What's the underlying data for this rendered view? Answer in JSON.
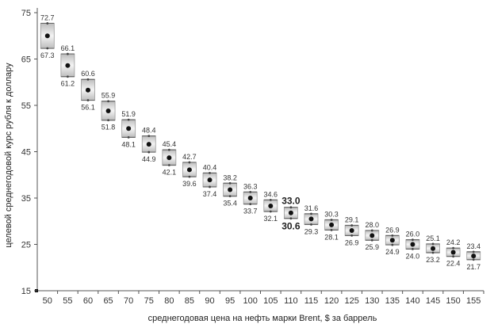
{
  "chart_data": {
    "type": "box",
    "xlabel": "среднегодовая цена на нефть марки Brent, $ за баррель",
    "ylabel": "целевой среднегодовой курс рубля к доллару",
    "ylim": [
      15,
      75
    ],
    "yticks": [
      15,
      25,
      35,
      45,
      55,
      65,
      75
    ],
    "categories": [
      "50",
      "55",
      "60",
      "65",
      "70",
      "75",
      "80",
      "85",
      "90",
      "95",
      "100",
      "105",
      "110",
      "115",
      "120",
      "125",
      "130",
      "135",
      "140",
      "145",
      "150",
      "155"
    ],
    "series": [
      {
        "high": [
          72.7,
          66.1,
          60.6,
          55.9,
          51.9,
          48.4,
          45.4,
          42.7,
          40.4,
          38.2,
          36.3,
          34.6,
          33.0,
          31.6,
          30.3,
          29.1,
          28.0,
          26.9,
          26.0,
          25.1,
          24.2,
          23.4
        ],
        "low": [
          67.3,
          61.2,
          56.1,
          51.8,
          48.1,
          44.9,
          42.1,
          39.6,
          37.4,
          35.4,
          33.7,
          32.1,
          30.6,
          29.3,
          28.1,
          26.9,
          25.9,
          24.9,
          24.0,
          23.2,
          22.4,
          21.7
        ],
        "center": [
          70.0,
          63.6,
          58.3,
          53.8,
          50.0,
          46.6,
          43.7,
          41.1,
          38.9,
          36.8,
          35.0,
          33.3,
          31.8,
          30.5,
          29.2,
          28.0,
          26.9,
          25.9,
          25.0,
          24.1,
          23.3,
          22.5
        ]
      }
    ],
    "high_labels": [
      "72.7",
      "66.1",
      "60.6",
      "55.9",
      "51.9",
      "48.4",
      "45.4",
      "42.7",
      "40.4",
      "38.2",
      "36.3",
      "34.6",
      "33.0",
      "31.6",
      "30.3",
      "29.1",
      "28.0",
      "26.9",
      "26.0",
      "25.1",
      "24.2",
      "23.4"
    ],
    "low_labels": [
      "67.3",
      "61.2",
      "56.1",
      "51.8",
      "48.1",
      "44.9",
      "42.1",
      "39.6",
      "37.4",
      "35.4",
      "33.7",
      "32.1",
      "30.6",
      "29.3",
      "28.1",
      "26.9",
      "25.9",
      "24.9",
      "24.0",
      "23.2",
      "22.4",
      "21.7"
    ],
    "emphasized_category": "110",
    "grid": false,
    "legend": "none",
    "colors": {
      "box_fill": "#d4d4d4",
      "box_edge": "#9a9a9a",
      "point": "#111111",
      "axis": "#555555"
    }
  }
}
